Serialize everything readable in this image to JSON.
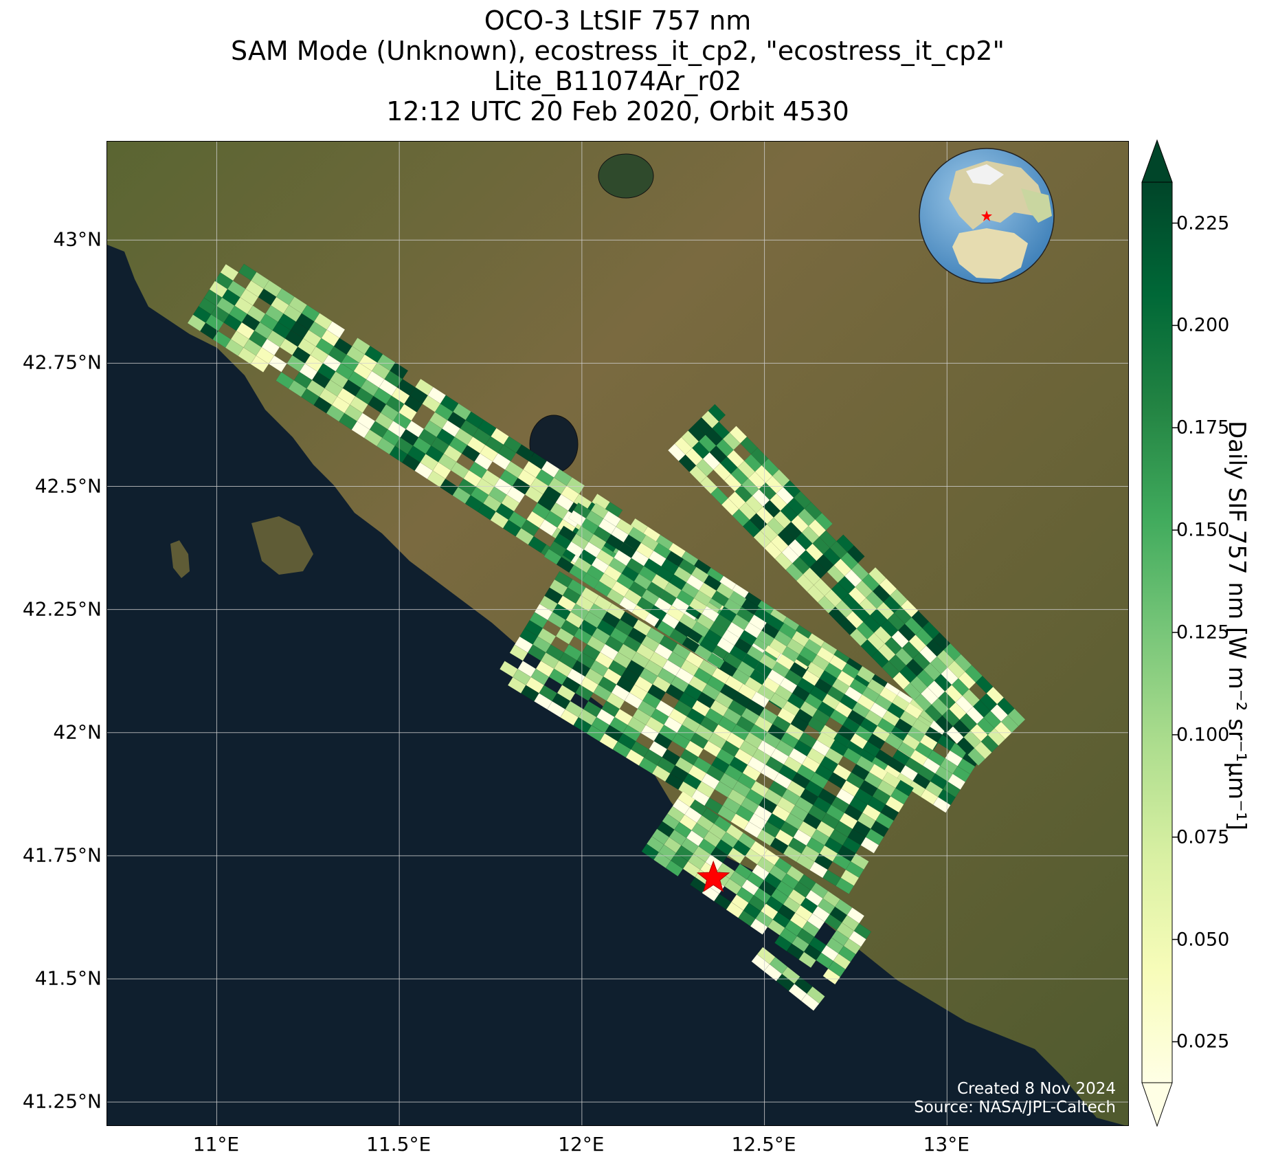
{
  "title_lines": [
    "OCO-3 LtSIF 757 nm",
    "SAM Mode (Unknown), ecostress_it_cp2, \"ecostress_it_cp2\"",
    "Lite_B11074Ar_r02",
    "12:12 UTC 20 Feb 2020, Orbit 4530"
  ],
  "credit": {
    "created": "Created 8 Nov 2024",
    "source": "Source: NASA/JPL-Caltech"
  },
  "map": {
    "lon_range": [
      10.7,
      13.5
    ],
    "lat_range": [
      41.2,
      43.2
    ],
    "lon_ticks": [
      {
        "value": 11.0,
        "label": "11°E"
      },
      {
        "value": 11.5,
        "label": "11.5°E"
      },
      {
        "value": 12.0,
        "label": "12°E"
      },
      {
        "value": 12.5,
        "label": "12.5°E"
      },
      {
        "value": 13.0,
        "label": "13°E"
      }
    ],
    "lat_ticks": [
      {
        "value": 43.0,
        "label": "43°N"
      },
      {
        "value": 42.75,
        "label": "42.75°N"
      },
      {
        "value": 42.5,
        "label": "42.5°N"
      },
      {
        "value": 42.25,
        "label": "42.25°N"
      },
      {
        "value": 42.0,
        "label": "42°N"
      },
      {
        "value": 41.75,
        "label": "41.75°N"
      },
      {
        "value": 41.5,
        "label": "41.5°N"
      },
      {
        "value": 41.25,
        "label": "41.25°N"
      }
    ],
    "grid": true,
    "target_marker": {
      "lon": 12.36,
      "lat": 41.705,
      "color": "#ff0000"
    },
    "colors": {
      "sea": "#0f1f2e",
      "land": "#6e6a3c",
      "gridline": "#d0d0d0"
    }
  },
  "colorbar": {
    "label": "Daily SIF 757 nm [W m⁻² sr⁻¹µm⁻¹]",
    "range": [
      0.015,
      0.235
    ],
    "ticks": [
      0.025,
      0.05,
      0.075,
      0.1,
      0.125,
      0.15,
      0.175,
      0.2,
      0.225
    ],
    "tick_labels": [
      "0.025",
      "0.050",
      "0.075",
      "0.100",
      "0.125",
      "0.150",
      "0.175",
      "0.200",
      "0.225"
    ],
    "extend": "both",
    "colormap": [
      "#ffffe5",
      "#f7fcb9",
      "#d9f0a3",
      "#addd8e",
      "#78c679",
      "#41ab5d",
      "#238443",
      "#006837",
      "#004529"
    ]
  },
  "chart_data": {
    "type": "heatmap",
    "title": "OCO-3 LtSIF 757 nm",
    "xlabel": "",
    "ylabel": "",
    "xlim": [
      10.7,
      13.5
    ],
    "ylim": [
      41.2,
      43.2
    ],
    "value_label": "Daily SIF 757 nm [W m⁻² sr⁻¹µm⁻¹]",
    "value_range": [
      0.015,
      0.235
    ],
    "swaths": [
      {
        "name": "swath-1",
        "start": [
          10.98,
          42.9
        ],
        "end": [
          12.95,
          41.95
        ],
        "width_deg": 0.22
      },
      {
        "name": "swath-2",
        "start": [
          11.95,
          42.42
        ],
        "end": [
          13.05,
          41.9
        ],
        "width_deg": 0.2
      },
      {
        "name": "swath-3",
        "start": [
          12.3,
          42.62
        ],
        "end": [
          13.15,
          41.98
        ],
        "width_deg": 0.18
      },
      {
        "name": "swath-4",
        "start": [
          11.85,
          42.22
        ],
        "end": [
          12.82,
          41.78
        ],
        "width_deg": 0.34
      },
      {
        "name": "swath-5",
        "start": [
          12.22,
          41.82
        ],
        "end": [
          12.75,
          41.55
        ],
        "width_deg": 0.2
      },
      {
        "name": "swath-6",
        "start": [
          12.48,
          41.55
        ],
        "end": [
          12.65,
          41.45
        ],
        "width_deg": 0.05
      }
    ]
  }
}
